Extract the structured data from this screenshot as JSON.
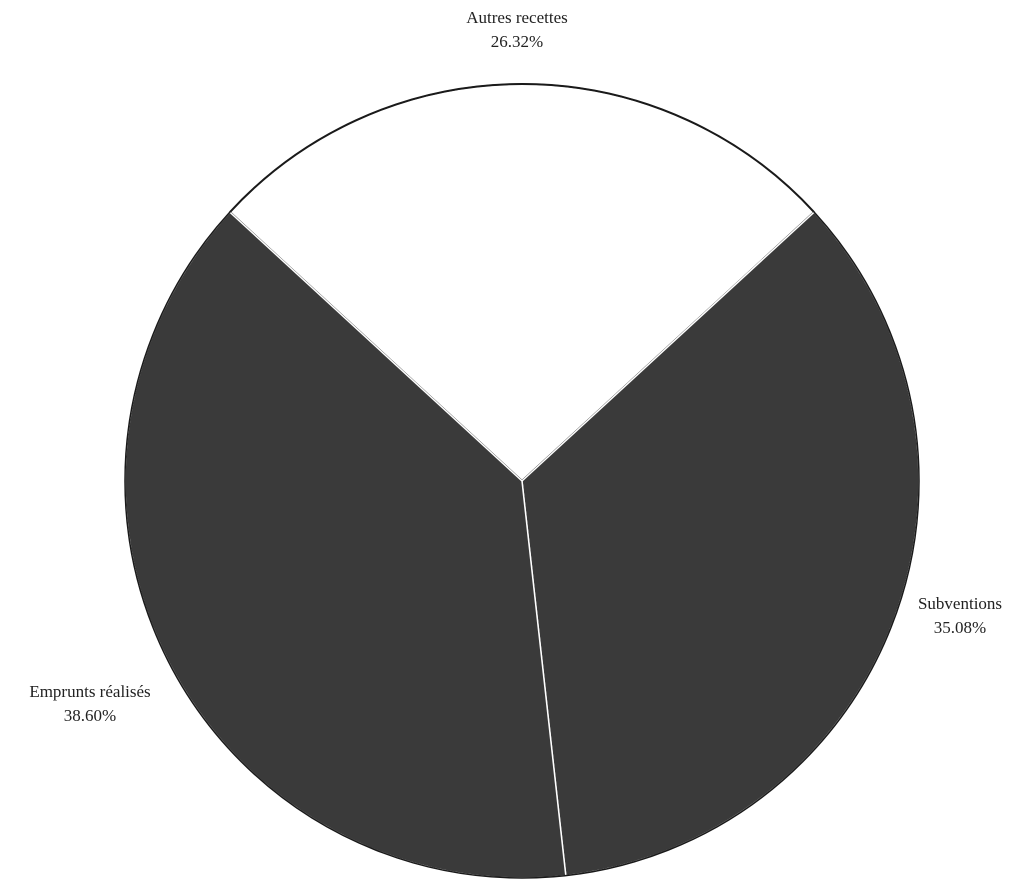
{
  "chart_data": {
    "type": "pie",
    "title": "",
    "slices": [
      {
        "label": "Autres recettes",
        "value": 26.32,
        "value_label": "26.32%",
        "color": "#ffffff"
      },
      {
        "label": "Subventions",
        "value": 35.08,
        "value_label": "35.08%",
        "color": "#3a3a3a"
      },
      {
        "label": "Emprunts réalisés",
        "value": 38.6,
        "value_label": "38.60%",
        "color": "#3a3a3a"
      }
    ],
    "legend": "none",
    "slice_outline_color": "#1a1a1a"
  }
}
